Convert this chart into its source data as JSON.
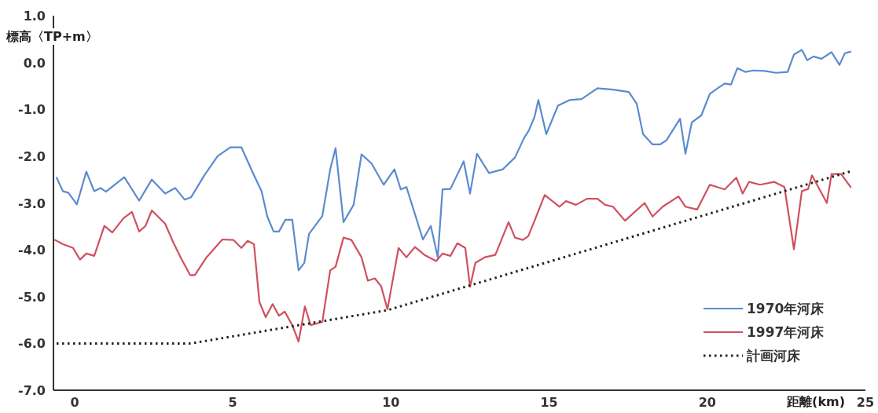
{
  "chart_data": {
    "type": "line",
    "xlabel": "距離(km)",
    "ylabel": "標高〈TP+m〉",
    "xlim": [
      -0.67,
      25
    ],
    "xticks": [
      0,
      5,
      10,
      15,
      20,
      25
    ],
    "ylim": [
      -7,
      1
    ],
    "yticks": [
      {
        "value": 1,
        "label": "1.0"
      },
      {
        "value": 0,
        "label": "0.0"
      },
      {
        "value": -1,
        "label": "-1.0"
      },
      {
        "value": -2,
        "label": "-2.0"
      },
      {
        "value": -3,
        "label": "-3.0"
      },
      {
        "value": -4,
        "label": "-4.0"
      },
      {
        "value": -5,
        "label": "-5.0"
      },
      {
        "value": -6,
        "label": "-6.0"
      },
      {
        "value": -7,
        "label": "-7.0"
      }
    ],
    "grid": false,
    "legend": "bottom right",
    "series": [
      {
        "name": "1970年河床",
        "color": "#5b8bd0",
        "line_style": "solid",
        "x": [
          -0.57,
          -0.37,
          -0.2,
          0.07,
          0.37,
          0.62,
          0.82,
          0.99,
          1.57,
          2.04,
          2.44,
          2.86,
          3.18,
          3.48,
          3.68,
          4.1,
          4.52,
          4.92,
          5.27,
          5.67,
          5.91,
          6.09,
          6.29,
          6.46,
          6.66,
          6.88,
          7.08,
          7.26,
          7.41,
          7.83,
          8.08,
          8.25,
          8.5,
          8.82,
          9.07,
          9.39,
          9.77,
          10.11,
          10.31,
          10.49,
          11.01,
          11.26,
          11.48,
          11.63,
          11.88,
          12.3,
          12.5,
          12.72,
          13.1,
          13.54,
          13.92,
          14.21,
          14.36,
          14.54,
          14.66,
          14.91,
          15.28,
          15.66,
          16.03,
          16.53,
          17.02,
          17.52,
          17.77,
          17.97,
          18.27,
          18.51,
          18.71,
          19.14,
          19.31,
          19.51,
          19.81,
          20.08,
          20.33,
          20.55,
          20.75,
          20.95,
          21.2,
          21.45,
          21.82,
          22.17,
          22.54,
          22.74,
          22.99,
          23.16,
          23.36,
          23.61,
          23.93,
          24.18,
          24.35,
          24.53
        ],
        "values": [
          -2.46,
          -2.75,
          -2.78,
          -3.03,
          -2.33,
          -2.75,
          -2.68,
          -2.76,
          -2.45,
          -2.95,
          -2.5,
          -2.8,
          -2.68,
          -2.93,
          -2.88,
          -2.41,
          -2.0,
          -1.81,
          -1.81,
          -2.41,
          -2.75,
          -3.29,
          -3.61,
          -3.61,
          -3.36,
          -3.36,
          -4.44,
          -4.28,
          -3.66,
          -3.28,
          -2.28,
          -1.83,
          -3.41,
          -3.04,
          -1.96,
          -2.16,
          -2.61,
          -2.28,
          -2.71,
          -2.66,
          -3.78,
          -3.49,
          -4.16,
          -2.71,
          -2.7,
          -2.11,
          -2.8,
          -1.95,
          -2.36,
          -2.28,
          -2.03,
          -1.61,
          -1.45,
          -1.16,
          -0.8,
          -1.53,
          -0.92,
          -0.8,
          -0.78,
          -0.55,
          -0.58,
          -0.63,
          -0.88,
          -1.53,
          -1.75,
          -1.75,
          -1.66,
          -1.2,
          -1.95,
          -1.28,
          -1.13,
          -0.67,
          -0.55,
          -0.45,
          -0.47,
          -0.12,
          -0.2,
          -0.17,
          -0.18,
          -0.22,
          -0.2,
          0.17,
          0.27,
          0.05,
          0.13,
          0.08,
          0.22,
          -0.05,
          0.2,
          0.23
        ]
      },
      {
        "name": "1997年河床",
        "color": "#d0505f",
        "line_style": "solid",
        "x": [
          -0.62,
          -0.37,
          -0.05,
          0.17,
          0.37,
          0.62,
          0.94,
          1.19,
          1.54,
          1.81,
          2.04,
          2.24,
          2.44,
          2.86,
          3.11,
          3.35,
          3.65,
          3.8,
          4.17,
          4.67,
          5.02,
          5.27,
          5.47,
          5.67,
          5.84,
          6.04,
          6.26,
          6.46,
          6.64,
          6.88,
          7.08,
          7.28,
          7.46,
          7.83,
          8.08,
          8.25,
          8.5,
          8.75,
          9.07,
          9.27,
          9.49,
          9.69,
          9.89,
          10.24,
          10.49,
          10.76,
          11.06,
          11.43,
          11.63,
          11.88,
          12.1,
          12.35,
          12.5,
          12.67,
          12.97,
          13.3,
          13.72,
          13.92,
          14.17,
          14.34,
          14.54,
          14.86,
          15.33,
          15.53,
          15.85,
          16.2,
          16.53,
          16.77,
          17.02,
          17.4,
          18.02,
          18.27,
          18.59,
          19.09,
          19.31,
          19.68,
          20.08,
          20.55,
          20.92,
          21.12,
          21.32,
          21.67,
          22.12,
          22.44,
          22.74,
          22.99,
          23.19,
          23.31,
          23.78,
          23.93,
          24.23,
          24.53
        ],
        "values": [
          -3.79,
          -3.88,
          -3.96,
          -4.21,
          -4.08,
          -4.13,
          -3.49,
          -3.63,
          -3.33,
          -3.19,
          -3.61,
          -3.49,
          -3.16,
          -3.44,
          -3.83,
          -4.16,
          -4.54,
          -4.54,
          -4.16,
          -3.78,
          -3.79,
          -3.96,
          -3.81,
          -3.88,
          -5.11,
          -5.44,
          -5.16,
          -5.41,
          -5.32,
          -5.61,
          -5.96,
          -5.21,
          -5.61,
          -5.54,
          -4.44,
          -4.36,
          -3.74,
          -3.79,
          -4.16,
          -4.66,
          -4.61,
          -4.78,
          -5.27,
          -3.96,
          -4.16,
          -3.94,
          -4.11,
          -4.24,
          -4.08,
          -4.13,
          -3.86,
          -3.96,
          -4.79,
          -4.28,
          -4.16,
          -4.11,
          -3.41,
          -3.74,
          -3.79,
          -3.71,
          -3.38,
          -2.83,
          -3.08,
          -2.96,
          -3.04,
          -2.91,
          -2.91,
          -3.04,
          -3.08,
          -3.38,
          -3.0,
          -3.29,
          -3.08,
          -2.86,
          -3.08,
          -3.14,
          -2.61,
          -2.71,
          -2.46,
          -2.8,
          -2.55,
          -2.61,
          -2.55,
          -2.66,
          -3.99,
          -2.75,
          -2.7,
          -2.41,
          -3.0,
          -2.38,
          -2.38,
          -2.66
        ]
      },
      {
        "name": "計画河床",
        "color": "#222222",
        "line_style": "dotted",
        "x": [
          -0.57,
          3.68,
          9.89,
          24.6
        ],
        "values": [
          -6.0,
          -6.0,
          -5.29,
          -2.31
        ]
      }
    ]
  }
}
